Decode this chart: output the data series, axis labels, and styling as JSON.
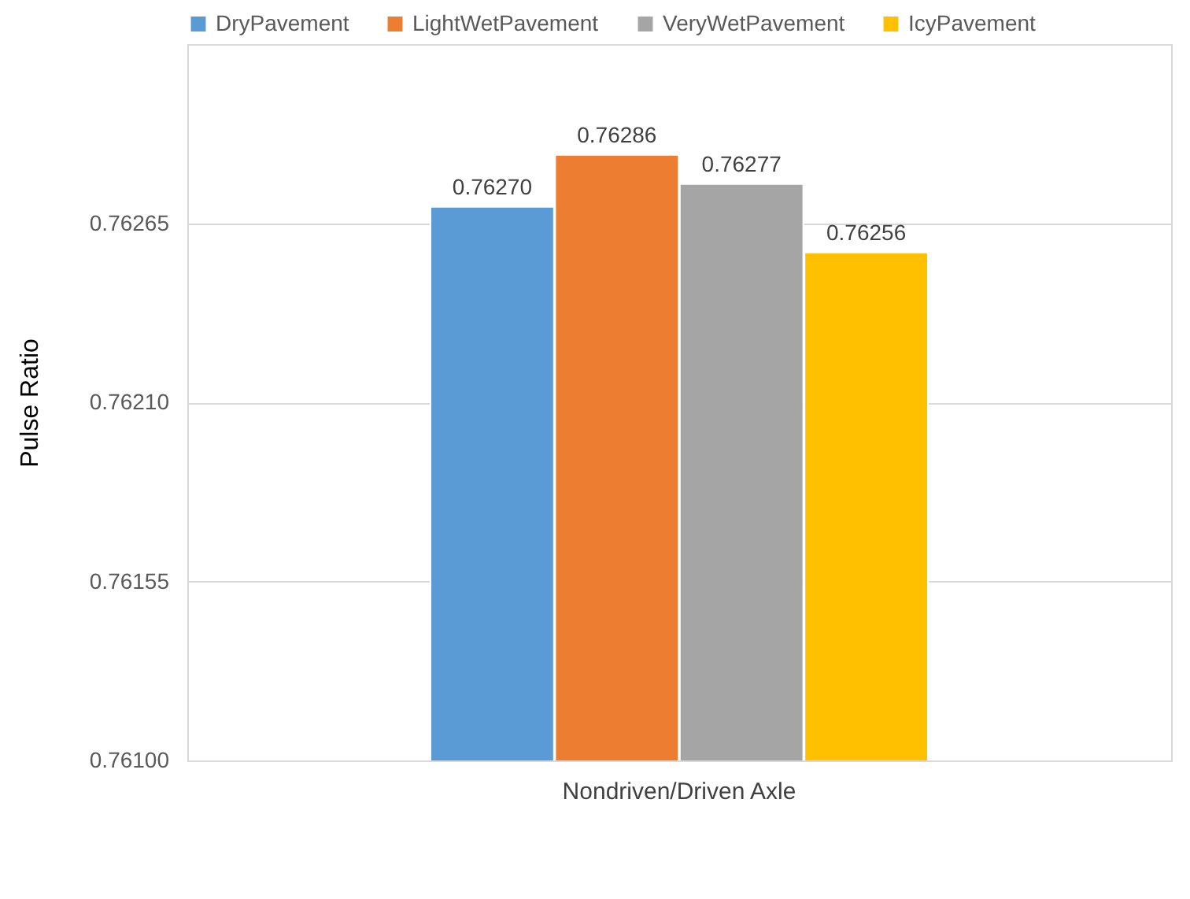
{
  "chart_data": {
    "type": "bar",
    "ylabel": "Pulse Ratio",
    "categories": [
      "Nondriven/Driven Axle"
    ],
    "series": [
      {
        "name": "DryPavement",
        "color": "#5b9bd5",
        "values": [
          0.7627
        ],
        "value_labels": [
          "0.76270"
        ]
      },
      {
        "name": "LightWetPavement",
        "color": "#ed7d31",
        "values": [
          0.76286
        ],
        "value_labels": [
          "0.76286"
        ]
      },
      {
        "name": "VeryWetPavement",
        "color": "#a5a5a5",
        "values": [
          0.76277
        ],
        "value_labels": [
          "0.76277"
        ]
      },
      {
        "name": "IcyPavement",
        "color": "#ffc000",
        "values": [
          0.76256
        ],
        "value_labels": [
          "0.76256"
        ]
      }
    ],
    "ylim": [
      0.761,
      0.7632
    ],
    "yticks": [
      {
        "value": 0.761,
        "label": "0.76100"
      },
      {
        "value": 0.76155,
        "label": "0.76155"
      },
      {
        "value": 0.7621,
        "label": "0.76210"
      },
      {
        "value": 0.76265,
        "label": "0.76265"
      }
    ],
    "grid": "y",
    "legend": "top"
  }
}
